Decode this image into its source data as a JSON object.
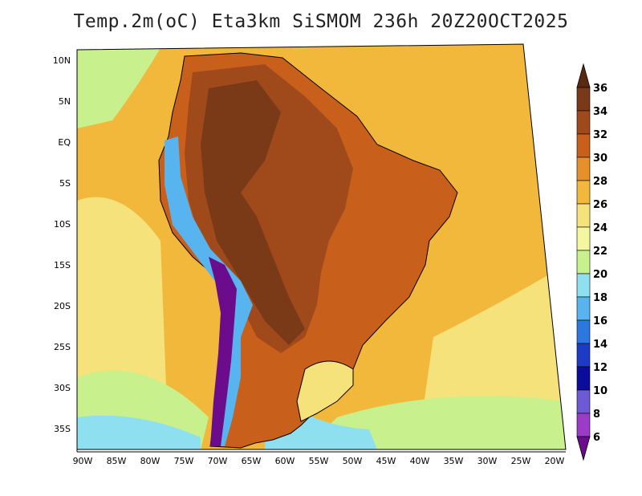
{
  "title": "Temp.2m(oC) Eta3km SiSMOM 236h 20Z20OCT2025",
  "lat_labels": [
    "10N",
    "5N",
    "EQ",
    "5S",
    "10S",
    "15S",
    "20S",
    "25S",
    "30S",
    "35S"
  ],
  "lon_labels": [
    "90W",
    "85W",
    "80W",
    "75W",
    "70W",
    "65W",
    "60W",
    "55W",
    "50W",
    "45W",
    "40W",
    "35W",
    "30W",
    "25W",
    "20W"
  ],
  "colorbar": {
    "labels": [
      "36",
      "34",
      "32",
      "30",
      "28",
      "26",
      "24",
      "22",
      "20",
      "18",
      "16",
      "14",
      "12",
      "10",
      "8",
      "6"
    ],
    "colors": [
      "#5a2a10",
      "#7a3a18",
      "#a04a1c",
      "#c8601c",
      "#e6902a",
      "#f2b83c",
      "#f6e27a",
      "#f4f6a0",
      "#c8f08c",
      "#8ee0f0",
      "#58b4ee",
      "#2a78e0",
      "#1c3cc8",
      "#0c0c9c",
      "#6e5ad4",
      "#9a3cc8",
      "#6a0c8c"
    ]
  },
  "colors": {
    "ocean_warm": "#f2b83c",
    "ocean_mid": "#f6e27a",
    "ocean_cool": "#c8f08c",
    "land_hot": "#a04a1c",
    "land_very_hot": "#7a3a18",
    "land_warm": "#c8601c",
    "andes": "#58b4ee",
    "andes_cold": "#6a0c8c",
    "south_cold": "#8ee0f0"
  }
}
